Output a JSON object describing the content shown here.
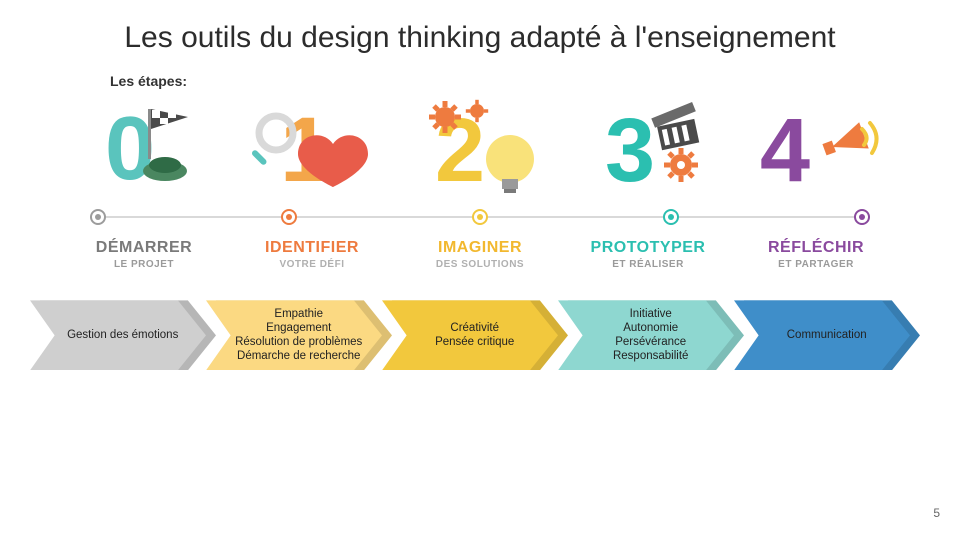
{
  "title": "Les outils du design thinking adapté à l'enseignement",
  "subtitle": "Les étapes:",
  "page_number": "5",
  "timeline": {
    "line_color": "#d9d9d9",
    "dots": [
      {
        "color": "#9c9c9c"
      },
      {
        "color": "#ee7b3f"
      },
      {
        "color": "#f2c83d"
      },
      {
        "color": "#2bbfb0"
      },
      {
        "color": "#8a4a9e"
      }
    ]
  },
  "phases": [
    {
      "main": "DÉMARRER",
      "sub": "LE PROJET",
      "main_color": "#7a7a7a",
      "sub_color": "#9a9a9a"
    },
    {
      "main": "IDENTIFIER",
      "sub": "VOTRE DÉFI",
      "main_color": "#ee7b3f",
      "sub_color": "#b0b0b0"
    },
    {
      "main": "IMAGINER",
      "sub": "DES SOLUTIONS",
      "main_color": "#f2b82f",
      "sub_color": "#b0b0b0"
    },
    {
      "main": "PROTOTYPER",
      "sub": "ET RÉALISER",
      "main_color": "#2bbfb0",
      "sub_color": "#9a9a9a"
    },
    {
      "main": "RÉFLÉCHIR",
      "sub": "ET PARTAGER",
      "main_color": "#8a4a9e",
      "sub_color": "#9a9a9a"
    }
  ],
  "chevrons": [
    {
      "bg": "#cfcfcf",
      "text": "Gestion des émotions"
    },
    {
      "bg": "#fbd982",
      "text": "Empathie\nEngagement\nRésolution de problèmes\nDémarche de recherche"
    },
    {
      "bg": "#f2c83d",
      "text": "Créativité\nPensée critique"
    },
    {
      "bg": "#8ed7d0",
      "text": "Initiative\nAutonomie\nPersévérance\nResponsabilité"
    },
    {
      "bg": "#3f8ec9",
      "text": "Communication"
    }
  ],
  "stage_graphics": {
    "colors": {
      "s0_digit": "#5ac4bd",
      "s0_flag": "#4a4a4a",
      "s0_hat": "#4a8760",
      "s1_digit": "#f3a64a",
      "s1_heart": "#e85c4a",
      "s1_mag_handle": "#5ac4bd",
      "s1_mag_ring": "#d9d9d9",
      "s2_digit": "#f2c83d",
      "s2_gear": "#ee7b3f",
      "s2_bulb": "#f9e27a",
      "s2_bulb_base": "#9a9a9a",
      "s3_digit": "#2bbfb0",
      "s3_clap": "#4a4a4a",
      "s3_gear2": "#ee7b3f",
      "s4_digit": "#8a4a9e",
      "s4_cone": "#ee7b3f",
      "s4_wave": "#f2c83d"
    }
  }
}
